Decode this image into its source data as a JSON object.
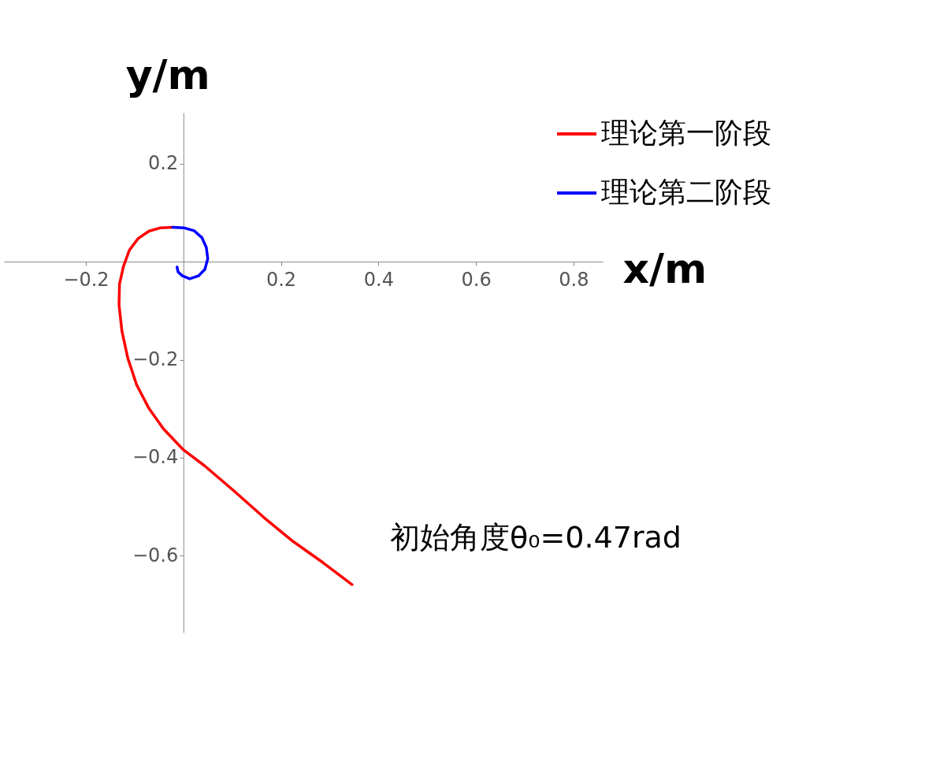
{
  "chart_data": {
    "type": "line",
    "xlabel": "x/m",
    "ylabel": "y/m",
    "xlim": [
      -0.368,
      0.86
    ],
    "ylim": [
      -0.757,
      0.304
    ],
    "xticks": [
      {
        "value": -0.2,
        "label": "−0.2"
      },
      0.2,
      0.4,
      0.6,
      0.8
    ],
    "yticks": [
      {
        "value": -0.6,
        "label": "−0.6"
      },
      {
        "value": -0.4,
        "label": "−0.4"
      },
      {
        "value": -0.2,
        "label": "−0.2"
      },
      0.2
    ],
    "grid": false,
    "legend": "top right",
    "marker": "none",
    "line_style": "solid",
    "annotations": [
      "初始角度θ₀=0.47rad"
    ],
    "series": [
      {
        "name": "理论第一阶段",
        "color": "#ff0000",
        "x": [
          0.346,
          0.286,
          0.225,
          0.165,
          0.104,
          0.044,
          0,
          -0.041,
          -0.071,
          -0.096,
          -0.114,
          -0.126,
          -0.132,
          -0.131,
          -0.123,
          -0.111,
          -0.093,
          -0.071,
          -0.047,
          -0.022
        ],
        "values": [
          -0.659,
          -0.614,
          -0.571,
          -0.522,
          -0.468,
          -0.417,
          -0.384,
          -0.341,
          -0.299,
          -0.251,
          -0.197,
          -0.142,
          -0.088,
          -0.046,
          -0.01,
          0.023,
          0.047,
          0.062,
          0.069,
          0.07
        ]
      },
      {
        "name": "理论第二阶段",
        "color": "#0000ff",
        "x": [
          -0.022,
          0.001,
          0.022,
          0.038,
          0.047,
          0.05,
          0.044,
          0.031,
          0.013,
          -0.002,
          -0.011,
          -0.013
        ],
        "values": [
          0.07,
          0.069,
          0.063,
          0.049,
          0.029,
          0.006,
          -0.016,
          -0.029,
          -0.035,
          -0.029,
          -0.021,
          -0.011
        ]
      }
    ]
  }
}
